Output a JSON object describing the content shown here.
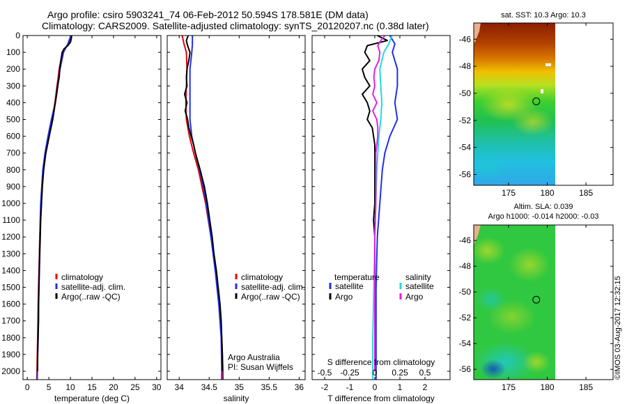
{
  "header": {
    "line1": "Argo profile: csiro 5903241_74 06-Feb-2012 50.594S 178.581E (DM data)",
    "line2": "Climatology: CARS2009. Satellite-adjusted climatology: synTS_20120207.nc (0.38d later)"
  },
  "colors": {
    "climatology": "#e8000b",
    "satellite": "#1f2fe6",
    "argo": "#000000",
    "argo_salinity_diff": "#e020e0",
    "satellite_salinity_diff": "#22d8e0"
  },
  "chart_data": [
    {
      "type": "line",
      "panel": "temperature",
      "xlabel": "temperature (deg C)",
      "ylabel": "",
      "xlim": [
        -1,
        31
      ],
      "ylim": [
        2050,
        0
      ],
      "xticks": [
        "0",
        "5",
        "10",
        "15",
        "20",
        "25",
        "30"
      ],
      "yticks": [
        "0",
        "100",
        "200",
        "300",
        "400",
        "500",
        "600",
        "700",
        "800",
        "900",
        "1000",
        "1100",
        "1200",
        "1300",
        "1400",
        "1500",
        "1600",
        "1700",
        "1800",
        "1900",
        "2000"
      ],
      "legend": [
        "climatology",
        "satellite-adj. clim.",
        "Argo(..raw -QC)"
      ],
      "series": [
        {
          "name": "climatology",
          "depth": [
            0,
            50,
            100,
            200,
            300,
            400,
            500,
            600,
            700,
            800,
            1000,
            1200,
            1500,
            1800,
            2050
          ],
          "values": [
            10.2,
            9.5,
            8.1,
            7.4,
            6.9,
            6.4,
            5.8,
            5.0,
            4.3,
            3.7,
            3.2,
            2.9,
            2.6,
            2.4,
            2.2
          ]
        },
        {
          "name": "satellite-adj. clim.",
          "depth": [
            0,
            50,
            100,
            200,
            300,
            400,
            500,
            600,
            700,
            800,
            1000,
            1200,
            1500,
            1800,
            2050
          ],
          "values": [
            10.1,
            9.4,
            8.4,
            7.6,
            7.1,
            6.5,
            5.6,
            4.8,
            4.1,
            3.6,
            3.1,
            2.9,
            2.7,
            2.5,
            2.3
          ]
        },
        {
          "name": "Argo(..raw -QC)",
          "depth": [
            0,
            20,
            40,
            60,
            80,
            100,
            150,
            200,
            250,
            300,
            350,
            400,
            450,
            500,
            550,
            600,
            650,
            700,
            800,
            900,
            1000,
            1100,
            1200,
            1300,
            1400,
            1500,
            1600,
            1700,
            1800,
            1900,
            2000
          ],
          "values": [
            10.3,
            10.2,
            10.0,
            9.4,
            8.5,
            8.1,
            7.8,
            7.5,
            7.4,
            7.0,
            6.8,
            6.5,
            6.2,
            5.9,
            5.5,
            5.1,
            4.7,
            4.3,
            3.8,
            3.5,
            3.3,
            3.1,
            3.0,
            2.9,
            2.8,
            2.7,
            2.6,
            2.6,
            2.5,
            2.4,
            2.4
          ]
        }
      ]
    },
    {
      "type": "line",
      "panel": "salinity",
      "xlabel": "salinity",
      "xlim": [
        33.8,
        36.1
      ],
      "ylim": [
        2050,
        0
      ],
      "xticks": [
        "34",
        "34.5",
        "35",
        "35.5",
        "36"
      ],
      "legend": [
        "climatology",
        "satellite-adj. clim.",
        "Argo(..raw -QC)"
      ],
      "annotation": [
        "Argo Australia",
        "PI: Susan Wijffels"
      ],
      "series": [
        {
          "name": "climatology",
          "depth": [
            0,
            50,
            100,
            200,
            300,
            400,
            500,
            600,
            700,
            800,
            900,
            1000,
            1200,
            1400,
            1600,
            1800,
            2000,
            2050
          ],
          "values": [
            34.05,
            34.08,
            34.12,
            34.13,
            34.12,
            34.11,
            34.12,
            34.17,
            34.24,
            34.32,
            34.38,
            34.44,
            34.53,
            34.61,
            34.67,
            34.71,
            34.73,
            34.73
          ]
        },
        {
          "name": "satellite-adj. clim.",
          "depth": [
            0,
            50,
            100,
            200,
            300,
            400,
            500,
            600,
            700,
            800,
            900,
            1000,
            1200,
            1400,
            1600,
            1800,
            2000,
            2050
          ],
          "values": [
            34.22,
            34.22,
            34.21,
            34.18,
            34.18,
            34.18,
            34.18,
            34.21,
            34.27,
            34.34,
            34.4,
            34.45,
            34.53,
            34.6,
            34.66,
            34.7,
            34.71,
            34.71
          ]
        },
        {
          "name": "Argo(..raw -QC)",
          "depth": [
            0,
            30,
            60,
            100,
            150,
            200,
            250,
            300,
            350,
            400,
            450,
            500,
            550,
            600,
            650,
            700,
            800,
            900,
            1000,
            1100,
            1200,
            1300,
            1400,
            1500,
            1600,
            1700,
            1800,
            1900,
            2000
          ],
          "values": [
            34.15,
            34.12,
            34.14,
            34.18,
            34.16,
            34.13,
            34.12,
            34.13,
            34.09,
            34.13,
            34.1,
            34.14,
            34.16,
            34.2,
            34.24,
            34.27,
            34.35,
            34.42,
            34.47,
            34.51,
            34.55,
            34.58,
            34.62,
            34.65,
            34.68,
            34.7,
            34.71,
            34.72,
            34.72
          ]
        }
      ]
    },
    {
      "type": "line",
      "panel": "difference",
      "xlabel": "T difference from climatology",
      "xlabel2": "S difference from climatology",
      "xlim": [
        -2.5,
        3.0
      ],
      "ylim": [
        2050,
        0
      ],
      "xticks": [
        "-2",
        "-1",
        "0",
        "1",
        "2"
      ],
      "xticks_s": [
        "-0.5",
        "-0.25",
        "0",
        "0.25",
        "0.5"
      ],
      "legend": {
        "temperature": [
          "temperature",
          "satellite",
          "Argo"
        ],
        "salinity": [
          "salinity",
          "satellite",
          "Argo"
        ]
      },
      "series": [
        {
          "name": "T satellite",
          "depth": [
            0,
            50,
            100,
            200,
            300,
            400,
            500,
            600,
            700,
            800,
            1000,
            1200,
            1500,
            1800,
            2050
          ],
          "values": [
            0.6,
            0.8,
            0.7,
            0.9,
            0.9,
            0.8,
            0.9,
            0.6,
            0.4,
            0.3,
            0.2,
            0.1,
            0.05,
            0.05,
            0.05
          ]
        },
        {
          "name": "T Argo",
          "depth": [
            0,
            30,
            60,
            100,
            150,
            200,
            250,
            300,
            350,
            400,
            450,
            500,
            550,
            600,
            650,
            700,
            800,
            900,
            1000,
            1100,
            1200,
            1300,
            1400,
            1500,
            1600,
            1700,
            1800,
            1900,
            2000
          ],
          "values": [
            0.1,
            0.5,
            -0.3,
            -0.4,
            -0.2,
            -0.5,
            -0.4,
            -0.2,
            -0.5,
            -0.3,
            -0.2,
            -0.3,
            -0.1,
            -0.05,
            0.0,
            0.0,
            0.0,
            0.0,
            0.0,
            -0.05,
            0.0,
            0.0,
            0.0,
            0.0,
            0.0,
            0.0,
            0.0,
            0.0,
            0.0
          ]
        },
        {
          "name": "S satellite",
          "depth": [
            0,
            50,
            100,
            200,
            300,
            400,
            500,
            600,
            700,
            800,
            1000,
            1200,
            1500,
            1800,
            2050
          ],
          "values": [
            0.17,
            0.14,
            0.09,
            0.05,
            0.06,
            0.07,
            0.06,
            0.04,
            0.03,
            0.02,
            0.01,
            0.0,
            -0.01,
            -0.02,
            -0.02
          ]
        },
        {
          "name": "S Argo",
          "depth": [
            0,
            30,
            60,
            100,
            150,
            200,
            250,
            300,
            350,
            400,
            450,
            500,
            550,
            600,
            650,
            700,
            800,
            1000,
            1200,
            1500,
            1800,
            2000
          ],
          "values": [
            0.1,
            0.06,
            0.03,
            0.05,
            0.04,
            0.0,
            -0.01,
            0.0,
            -0.02,
            0.02,
            -0.02,
            0.02,
            0.03,
            0.03,
            0.02,
            0.01,
            0.01,
            0.01,
            0.0,
            0.0,
            0.0,
            0.0
          ]
        }
      ]
    }
  ],
  "maps": {
    "sst_title": "sat. SST: 10.3  Argo: 10.3",
    "sla_title_1": "Altim. SLA: 0.039",
    "sla_title_2": "Argo h1000: -0.014  h2000: -0.03",
    "yticks": [
      "-46",
      "-48",
      "-50",
      "-52",
      "-54",
      "-56"
    ],
    "xticks": [
      "175",
      "180",
      "185"
    ],
    "profile_position": {
      "lon": 178.581,
      "lat": -50.594
    },
    "lon_range": [
      170.5,
      188.5
    ],
    "lat_range": [
      -56.8,
      -44.8
    ]
  },
  "credit": "©IMOS 03-Aug-2017 12:32:15"
}
